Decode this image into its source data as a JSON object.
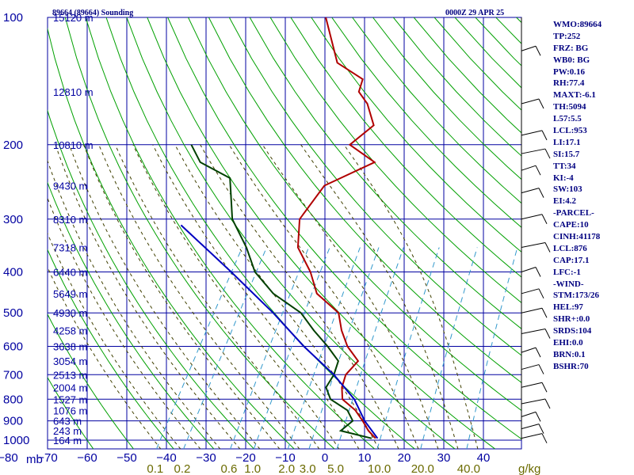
{
  "header": {
    "station": "89664 (89664) Sounding",
    "time": "0000Z 29 APR 25"
  },
  "chart_data": {
    "type": "skew-t",
    "pressure_axis": {
      "unit_label": "mb",
      "ticks": [
        100,
        200,
        300,
        400,
        500,
        600,
        700,
        800,
        900,
        1000
      ],
      "scale": "log",
      "range": [
        100,
        1050
      ]
    },
    "temperature_axis": {
      "ticks": [
        -80,
        -70,
        -60,
        -50,
        -40,
        -30,
        -20,
        -10,
        0,
        10,
        20,
        30,
        40
      ],
      "skew": "45-degree"
    },
    "mixing_ratio_axis": {
      "unit_label": "g/kg",
      "ticks": [
        "0.1",
        "0.2",
        "0.6",
        "1.0",
        "2.0",
        "3.0",
        "5.0",
        "10.0",
        "20.0",
        "40.0"
      ]
    },
    "height_labels": [
      {
        "p": 100,
        "label": "15120 m"
      },
      {
        "p": 150,
        "label": "12810 m"
      },
      {
        "p": 200,
        "label": "10810 m"
      },
      {
        "p": 250,
        "label": "9430 m"
      },
      {
        "p": 300,
        "label": "8310 m"
      },
      {
        "p": 350,
        "label": "7318 m"
      },
      {
        "p": 400,
        "label": "6440 m"
      },
      {
        "p": 450,
        "label": "5649 m"
      },
      {
        "p": 500,
        "label": "4930 m"
      },
      {
        "p": 550,
        "label": "4258 m"
      },
      {
        "p": 600,
        "label": "3638 m"
      },
      {
        "p": 650,
        "label": "3054 m"
      },
      {
        "p": 700,
        "label": "2513 m"
      },
      {
        "p": 750,
        "label": "2004 m"
      },
      {
        "p": 800,
        "label": "1527 m"
      },
      {
        "p": 850,
        "label": "1076 m"
      },
      {
        "p": 900,
        "label": "643 m"
      },
      {
        "p": 950,
        "label": "243 m"
      },
      {
        "p": 1000,
        "label": "164 m"
      }
    ],
    "series": [
      {
        "name": "Temperature",
        "color": "#b00000",
        "points": [
          {
            "p": 100,
            "t": -66
          },
          {
            "p": 128,
            "t": -56
          },
          {
            "p": 140,
            "t": -47
          },
          {
            "p": 150,
            "t": -46
          },
          {
            "p": 160,
            "t": -42
          },
          {
            "p": 180,
            "t": -37
          },
          {
            "p": 200,
            "t": -40
          },
          {
            "p": 220,
            "t": -31
          },
          {
            "p": 250,
            "t": -40
          },
          {
            "p": 300,
            "t": -41
          },
          {
            "p": 350,
            "t": -37
          },
          {
            "p": 400,
            "t": -30
          },
          {
            "p": 450,
            "t": -25
          },
          {
            "p": 500,
            "t": -16.5
          },
          {
            "p": 550,
            "t": -13
          },
          {
            "p": 600,
            "t": -9
          },
          {
            "p": 650,
            "t": -4
          },
          {
            "p": 700,
            "t": -5
          },
          {
            "p": 750,
            "t": -4
          },
          {
            "p": 800,
            "t": -2
          },
          {
            "p": 850,
            "t": 3
          },
          {
            "p": 900,
            "t": 6.5
          },
          {
            "p": 950,
            "t": 9.5
          },
          {
            "p": 990,
            "t": 12.5
          }
        ]
      },
      {
        "name": "Dewpoint",
        "color": "#004000",
        "points": [
          {
            "p": 200,
            "t": -80
          },
          {
            "p": 220,
            "t": -75
          },
          {
            "p": 240,
            "t": -65
          },
          {
            "p": 300,
            "t": -58
          },
          {
            "p": 350,
            "t": -50
          },
          {
            "p": 400,
            "t": -44
          },
          {
            "p": 450,
            "t": -36
          },
          {
            "p": 500,
            "t": -26
          },
          {
            "p": 550,
            "t": -20
          },
          {
            "p": 600,
            "t": -14
          },
          {
            "p": 650,
            "t": -9
          },
          {
            "p": 700,
            "t": -8
          },
          {
            "p": 750,
            "t": -8
          },
          {
            "p": 800,
            "t": -5
          },
          {
            "p": 850,
            "t": 1
          },
          {
            "p": 900,
            "t": 4
          },
          {
            "p": 950,
            "t": 2.5
          },
          {
            "p": 970,
            "t": 7
          },
          {
            "p": 990,
            "t": 11.5
          }
        ]
      },
      {
        "name": "Parcel path",
        "color": "#0000c0",
        "points": [
          {
            "p": 310,
            "t": -70
          },
          {
            "p": 400,
            "t": -50
          },
          {
            "p": 500,
            "t": -33
          },
          {
            "p": 600,
            "t": -20
          },
          {
            "p": 700,
            "t": -8
          },
          {
            "p": 800,
            "t": 1
          },
          {
            "p": 900,
            "t": 7
          },
          {
            "p": 990,
            "t": 13
          }
        ]
      }
    ],
    "wind_barbs_present": true,
    "grid": true
  },
  "indices": [
    "WMO:89664",
    "TP:252",
    "FRZ: BG",
    "WB0: BG",
    "PW:0.16",
    "RH:77.4",
    "MAXT:-6.1",
    "TH:5094",
    "L57:5.5",
    "LCL:953",
    "LI:17.1",
    "SI:15.7",
    "TT:34",
    "KI:-4",
    "SW:103",
    "EI:4.2",
    "-PARCEL-",
    "CAPE:10",
    "CINH:41178",
    "LCL:876",
    "CAP:17.1",
    "LFC:-1",
    "-WIND-",
    "STM:173/26",
    "HEL:97",
    "SHR+:0.0",
    "SRDS:104",
    "EHI:0.0",
    "BRN:0.1",
    "BSHR:70"
  ],
  "colors": {
    "grid": "#0000a0",
    "dry_adiabat": "#00a000",
    "moist_adiabat": "#404000",
    "mixing_ratio": "#3399cc",
    "temperature": "#b00000",
    "dewpoint": "#004000",
    "parcel": "#0000c0"
  }
}
